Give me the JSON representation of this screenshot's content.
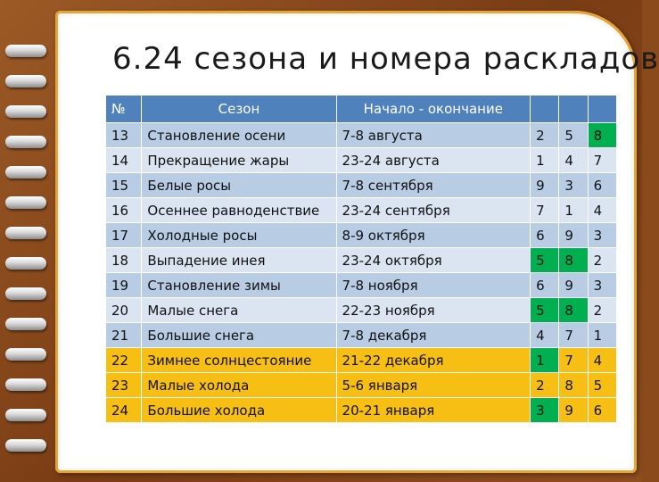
{
  "slide": {
    "title": "6.24 сезона и номера раскладов"
  },
  "table": {
    "headers": [
      "№",
      "Сезон",
      "Начало - окончание",
      "",
      "",
      ""
    ],
    "rows": [
      {
        "num": "13",
        "season": "Становление осени",
        "dates": "7-8 августа",
        "a": "2",
        "b": "5",
        "c": "8",
        "style": "blue",
        "green": [
          "c"
        ]
      },
      {
        "num": "14",
        "season": "Прекращение жары",
        "dates": "23-24 августа",
        "a": "1",
        "b": "4",
        "c": "7",
        "style": "blue2",
        "green": []
      },
      {
        "num": "15",
        "season": "Белые росы",
        "dates": "7-8 сентября",
        "a": "9",
        "b": "3",
        "c": "6",
        "style": "blue",
        "green": []
      },
      {
        "num": "16",
        "season": "Осеннее равноденствие",
        "dates": "23-24 сентября",
        "a": "7",
        "b": "1",
        "c": "4",
        "style": "blue2",
        "green": []
      },
      {
        "num": "17",
        "season": "Холодные росы",
        "dates": "8-9 октября",
        "a": "6",
        "b": "9",
        "c": "3",
        "style": "blue",
        "green": []
      },
      {
        "num": "18",
        "season": "Выпадение инея",
        "dates": "23-24 октября",
        "a": "5",
        "b": "8",
        "c": "2",
        "style": "blue2",
        "green": [
          "a",
          "b"
        ]
      },
      {
        "num": "19",
        "season": "Становление зимы",
        "dates": "7-8 ноября",
        "a": "6",
        "b": "9",
        "c": "3",
        "style": "blue",
        "green": []
      },
      {
        "num": "20",
        "season": "Малые снега",
        "dates": "22-23 ноября",
        "a": "5",
        "b": "8",
        "c": "2",
        "style": "blue2",
        "green": [
          "a",
          "b"
        ]
      },
      {
        "num": "21",
        "season": "Большие снега",
        "dates": "7-8 декабря",
        "a": "4",
        "b": "7",
        "c": "1",
        "style": "blue",
        "green": []
      },
      {
        "num": "22",
        "season": "Зимнее солнцестояние",
        "dates": "21-22 декабря",
        "a": "1",
        "b": "7",
        "c": "4",
        "style": "gold",
        "green": [
          "a"
        ]
      },
      {
        "num": "23",
        "season": "Малые холода",
        "dates": "5-6 января",
        "a": "2",
        "b": "8",
        "c": "5",
        "style": "gold",
        "green": []
      },
      {
        "num": "24",
        "season": "Большие холода",
        "dates": "20-21 января",
        "a": "3",
        "b": "9",
        "c": "6",
        "style": "gold",
        "green": [
          "a"
        ]
      }
    ]
  },
  "colors": {
    "header": "#4f81bd",
    "row_blue": "#b8cce4",
    "row_light": "#dbe5f1",
    "row_gold": "#f7bf14",
    "highlight_green": "#00b050",
    "cover_brown": "#8a4a1c",
    "paper_border": "#e8a437"
  },
  "icons": [
    "notebook-ring-icon"
  ]
}
